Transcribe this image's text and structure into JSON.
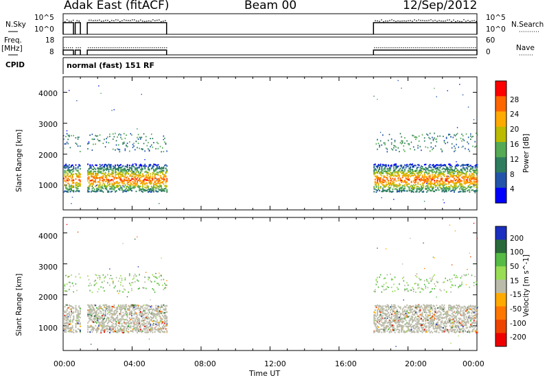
{
  "header": {
    "station": "Adak East (fitACF)",
    "beam": "Beam 00",
    "date": "12/Sep/2012"
  },
  "panels": {
    "nsky_label": "N.Sky",
    "nsky_ticks": [
      "10^5",
      "10^0"
    ],
    "nsearch_label": "N.Search",
    "nsearch_ticks": [
      "10^5",
      "10^0"
    ],
    "freq_label": "Freq.",
    "freq_unit": "[MHz]",
    "freq_ticks": [
      "18",
      "8"
    ],
    "nave_label": "Nave",
    "nave_ticks": [
      "60",
      "0"
    ],
    "cpid_label": "CPID",
    "cpid_text": "normal (fast) 151 RF"
  },
  "chart_data": [
    {
      "type": "heatmap",
      "name": "power",
      "ylabel": "Slant Range [km]",
      "ytick_labels": [
        "1000",
        "2000",
        "3000",
        "4000"
      ],
      "ylim": [
        200,
        4500
      ],
      "xlim": [
        0,
        24
      ],
      "colorbar_label": "Power [dB]",
      "colorbar_ticks": [
        "28",
        "24",
        "20",
        "16",
        "12",
        "8",
        "4"
      ],
      "colors": [
        "#0000ff",
        "#2255aa",
        "#2e7d5e",
        "#55aa55",
        "#bbbb00",
        "#ffaa00",
        "#ff6600",
        "#ff0000"
      ],
      "data_windows_hours": [
        [
          0.0,
          0.6
        ],
        [
          0.7,
          1.0
        ],
        [
          1.4,
          6.0
        ],
        [
          18.0,
          24.0
        ]
      ]
    },
    {
      "type": "heatmap",
      "name": "velocity",
      "ylabel": "Slant Range [km]",
      "ytick_labels": [
        "1000",
        "2000",
        "3000",
        "4000"
      ],
      "ylim": [
        200,
        4500
      ],
      "xlim": [
        0,
        24
      ],
      "colorbar_label": "Velocity [m s^-1]",
      "colorbar_ticks": [
        "200",
        "100",
        "50",
        "15",
        "-15",
        "-50",
        "-100",
        "-200"
      ],
      "colors": [
        "#1a2fbf",
        "#2a6a3a",
        "#55bb44",
        "#99dd55",
        "#bbbbaa",
        "#ffaa00",
        "#ff7700",
        "#ee4400",
        "#ee0000"
      ],
      "data_windows_hours": [
        [
          0.0,
          0.6
        ],
        [
          0.7,
          1.0
        ],
        [
          1.4,
          6.0
        ],
        [
          18.0,
          24.0
        ]
      ]
    }
  ],
  "x_axis": {
    "label": "Time UT",
    "ticks": [
      "00:00",
      "04:00",
      "08:00",
      "12:00",
      "16:00",
      "20:00",
      "00:00"
    ]
  }
}
